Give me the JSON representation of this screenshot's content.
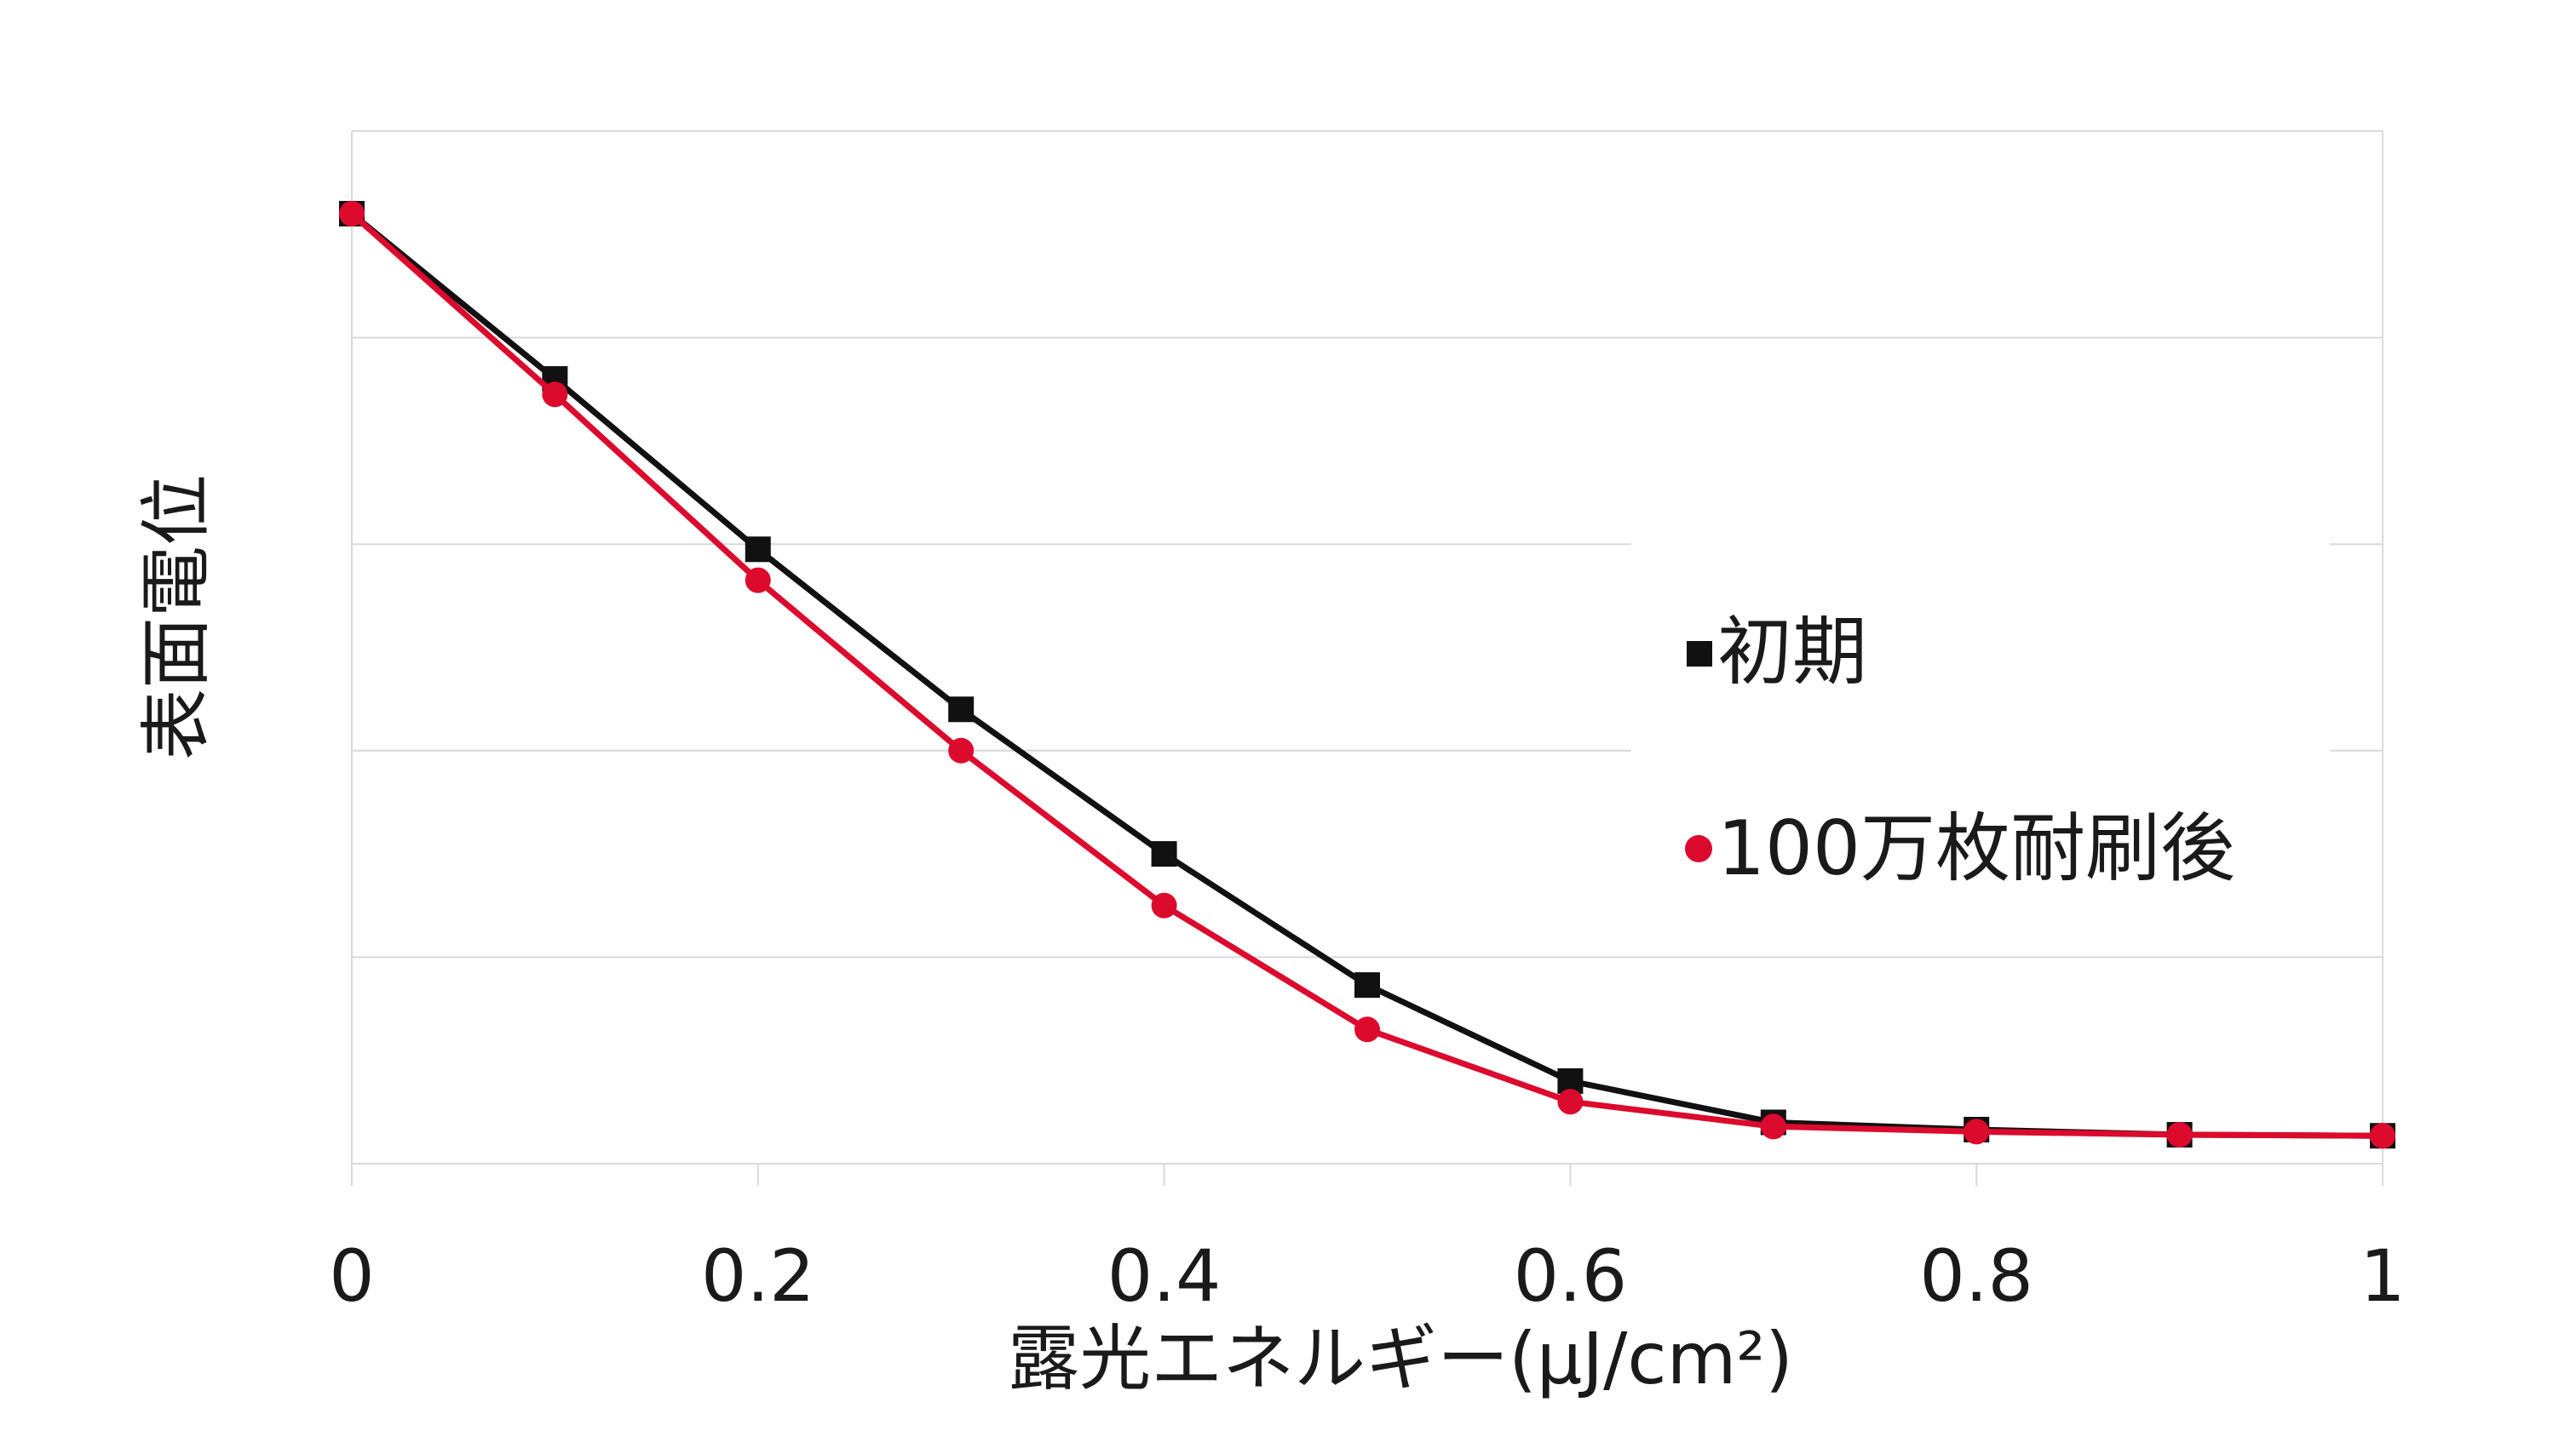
{
  "chart_data": {
    "type": "line",
    "xlabel": "露光エネルギー(μJ/cm²)",
    "ylabel": "表面電位",
    "xlim": [
      0,
      1
    ],
    "xticks": [
      "0",
      "0.2",
      "0.4",
      "0.6",
      "0.8",
      "1"
    ],
    "ylim": [
      0,
      1
    ],
    "y_tick_labels_shown": false,
    "grid": "horizontal",
    "legend_position": "right",
    "x": [
      0,
      0.1,
      0.2,
      0.3,
      0.4,
      0.5,
      0.6,
      0.7,
      0.8,
      0.9,
      1.0
    ],
    "series": [
      {
        "name": "初期",
        "marker": "square",
        "color": "#111111",
        "values": [
          0.92,
          0.76,
          0.595,
          0.44,
          0.3,
          0.173,
          0.08,
          0.04,
          0.033,
          0.028,
          0.027
        ]
      },
      {
        "name": "100万枚耐刷後",
        "marker": "circle",
        "color": "#dc0a2d",
        "values": [
          0.92,
          0.745,
          0.565,
          0.4,
          0.25,
          0.13,
          0.06,
          0.036,
          0.031,
          0.028,
          0.027
        ]
      }
    ]
  },
  "colors": {
    "grid": "#d9d9d9",
    "text": "#1a1a1a"
  }
}
